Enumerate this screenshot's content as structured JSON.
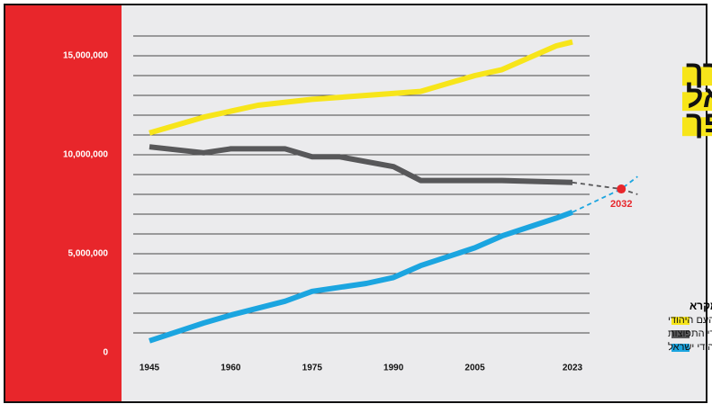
{
  "chart_data": {
    "type": "line",
    "title_lines": [
      "הדרך",
      "אל",
      "המהפך"
    ],
    "legend_title": "מקרא",
    "xlim": [
      1945,
      2023
    ],
    "xticks": [
      1945,
      1960,
      1975,
      1990,
      2005,
      2023
    ],
    "ylim": [
      0,
      16000000
    ],
    "yticks": [
      0,
      {
        "value": 5000000,
        "label": "5,000,000"
      },
      {
        "value": 10000000,
        "label": "10,000,000"
      },
      {
        "value": 15000000,
        "label": "15,000,000"
      }
    ],
    "grid_lines": [
      1000000,
      2000000,
      3000000,
      4000000,
      5000000,
      6000000,
      7000000,
      8000000,
      9000000,
      10000000,
      11000000,
      12000000,
      13000000,
      14000000,
      15000000,
      16000000
    ],
    "series": [
      {
        "name": "העם היהודי",
        "color": "#f7e51a",
        "x": [
          1945,
          1955,
          1965,
          1975,
          1985,
          1995,
          2005,
          2010,
          2020,
          2023
        ],
        "values": [
          11100000,
          11900000,
          12500000,
          12800000,
          13000000,
          13200000,
          14000000,
          14300000,
          15500000,
          15700000
        ]
      },
      {
        "name": "יהודי התפוצות",
        "color": "#58585a",
        "x": [
          1945,
          1955,
          1960,
          1970,
          1975,
          1980,
          1990,
          1995,
          2010,
          2023
        ],
        "values": [
          10400000,
          10100000,
          10300000,
          10300000,
          9900000,
          9900000,
          9400000,
          8700000,
          8700000,
          8600000
        ],
        "projection_x": [
          2023,
          2032,
          2035
        ],
        "projection_values": [
          8600000,
          8270000,
          8000000
        ]
      },
      {
        "name": "יהודי ישראל",
        "color": "#1ba5e0",
        "x": [
          1945,
          1955,
          1960,
          1970,
          1975,
          1985,
          1990,
          1995,
          2005,
          2010,
          2020,
          2023
        ],
        "values": [
          600000,
          1500000,
          1900000,
          2600000,
          3100000,
          3500000,
          3800000,
          4400000,
          5300000,
          5900000,
          6800000,
          7100000
        ],
        "projection_x": [
          2023,
          2032,
          2035
        ],
        "projection_values": [
          7100000,
          8270000,
          8900000
        ]
      }
    ],
    "intersection": {
      "x": 2032,
      "value": 8270000,
      "color": "#e8262b"
    },
    "grid": true
  }
}
